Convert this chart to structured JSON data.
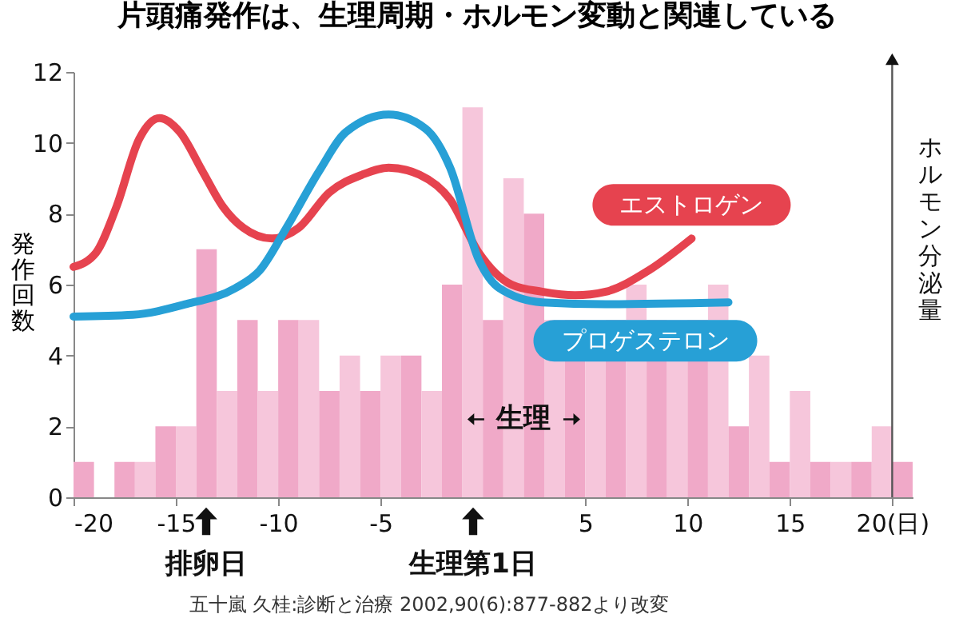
{
  "chart_data": {
    "type": "histogram",
    "title": "片頭痛発作は、生理周期・ホルモン変動と関連している",
    "ylabel": "発作回数",
    "y2label": "ホルモン分泌量",
    "bins": [
      -20,
      -19,
      -18,
      -17,
      -16,
      -15,
      -14,
      -13,
      -12,
      -11,
      -10,
      -9,
      -8,
      -7,
      -6,
      -5,
      -4,
      -3,
      -2,
      -1,
      0,
      1,
      2,
      3,
      4,
      5,
      6,
      7,
      8,
      9,
      10,
      11,
      12,
      13,
      14,
      15,
      16,
      17,
      18,
      19,
      20,
      21
    ],
    "values": [
      1,
      0,
      1,
      1,
      2,
      2,
      7,
      3,
      5,
      3,
      5,
      5,
      3,
      4,
      3,
      4,
      4,
      3,
      6,
      11,
      5,
      9,
      8,
      5,
      5,
      5,
      5,
      6,
      5,
      5,
      5,
      6,
      2,
      4,
      1,
      3,
      1,
      1,
      1,
      2,
      1
    ],
    "colors": [
      "#f0a9c8",
      "#f6c6db",
      "#f0a9c8",
      "#f6c6db",
      "#f0a9c8",
      "#f6c6db",
      "#f0a9c8",
      "#f6c6db",
      "#f0a9c8",
      "#f6c6db",
      "#f0a9c8",
      "#f6c6db",
      "#f0a9c8",
      "#f6c6db",
      "#f0a9c8",
      "#f6c6db",
      "#f0a9c8",
      "#f6c6db",
      "#f0a9c8",
      "#f6c6db",
      "#f0a9c8",
      "#f6c6db",
      "#f0a9c8",
      "#f6c6db",
      "#f0a9c8",
      "#f6c6db",
      "#f0a9c8",
      "#f6c6db",
      "#f0a9c8",
      "#f6c6db",
      "#f0a9c8",
      "#f6c6db",
      "#f0a9c8",
      "#f6c6db",
      "#f0a9c8",
      "#f6c6db",
      "#f0a9c8",
      "#f6c6db",
      "#f0a9c8",
      "#f6c6db",
      "#f0a9c8"
    ],
    "series": [
      {
        "type": "line",
        "name": "エストロゲン",
        "color": "#e6434f",
        "x": [
          -20,
          -18.9,
          -17.9,
          -16.8,
          -15.8,
          -14.8,
          -13.7,
          -12.7,
          -11.7,
          -10.3,
          -9.0,
          -7.5,
          -5.9,
          -4.6,
          -3.1,
          -1.6,
          -0.2,
          1.4,
          2.9,
          4.5,
          6.0,
          8.1,
          10.2
        ],
        "values": [
          6.5,
          6.9,
          8.2,
          10.1,
          10.7,
          10.3,
          9.2,
          8.2,
          7.6,
          7.3,
          7.6,
          8.6,
          9.1,
          9.3,
          9.1,
          8.4,
          6.9,
          6.0,
          5.8,
          5.7,
          5.8,
          6.4,
          7.3
        ]
      },
      {
        "type": "line",
        "name": "プロゲステロン",
        "color": "#27a0d6",
        "x": [
          -20,
          -17.1,
          -14.5,
          -12.1,
          -10.9,
          -9.6,
          -8.0,
          -6.7,
          -4.6,
          -2.8,
          -1.6,
          -0.2,
          0.8,
          2.9,
          6.0,
          12.0
        ],
        "values": [
          5.1,
          5.15,
          5.45,
          5.9,
          6.4,
          7.6,
          9.2,
          10.3,
          10.8,
          10.4,
          9.3,
          6.7,
          5.9,
          5.5,
          5.45,
          5.5
        ]
      }
    ],
    "xlim": [
      -20,
      21
    ],
    "xticks": [
      -20,
      -15,
      -10,
      -5,
      5,
      10,
      15,
      {
        "value": 20,
        "label": "20(日)"
      }
    ],
    "ylim": [
      0,
      12
    ],
    "yticks": [
      0,
      2,
      4,
      6,
      8,
      10,
      12
    ],
    "annotations": [
      {
        "text": "生理",
        "x": 2,
        "y": 2.2
      },
      "排卵日",
      "生理第1日",
      "五十嵐 久桂:診断と治療 2002,90(6):877-882より改変"
    ]
  }
}
